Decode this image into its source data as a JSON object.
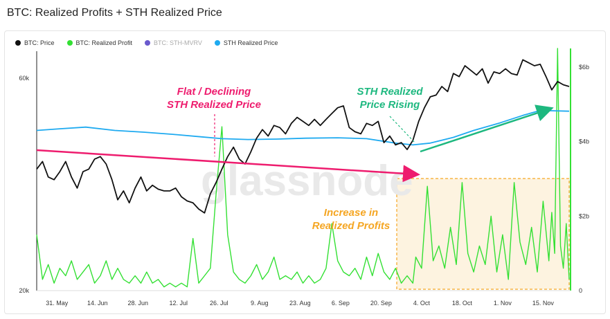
{
  "title": "BTC: Realized Profits + STH Realized Price",
  "legend": [
    {
      "label": "BTC: Price",
      "color": "#111111",
      "dim": false
    },
    {
      "label": "BTC: Realized Profit",
      "color": "#33e033",
      "dim": false
    },
    {
      "label": "BTC: STH-MVRV",
      "color": "#6a5acd",
      "dim": true
    },
    {
      "label": "STH Realized Price",
      "color": "#1eaaf0",
      "dim": false
    }
  ],
  "watermark": "glassnode",
  "annotations": {
    "flat_line1": "Flat / Declining",
    "flat_line2": "STH Realized Price",
    "rising_line1": "STH Realized",
    "rising_line2": "Price Rising",
    "profits_line1": "Increase in",
    "profits_line2": "Realized Profits"
  },
  "colors": {
    "price": "#111111",
    "profit": "#33e033",
    "sth": "#1eaaf0",
    "pink": "#ee1c6e",
    "teal": "#1db87f",
    "orange": "#f5a623",
    "box_fill": "#fdf3e0"
  },
  "chart_data": {
    "type": "line",
    "title": "BTC: Realized Profits + STH Realized Price",
    "x_start": "2021-05-24",
    "x_end": "2021-11-24",
    "x_ticks": [
      "31. May",
      "14. Jun",
      "28. Jun",
      "12. Jul",
      "26. Jul",
      "9. Aug",
      "23. Aug",
      "6. Sep",
      "20. Sep",
      "4. Oct",
      "18. Oct",
      "1. Nov",
      "15. Nov"
    ],
    "y_left_ticks": [
      "20k",
      "60k"
    ],
    "y_left_scale": "log",
    "y_left_range": [
      20000,
      70000
    ],
    "y_right_ticks": [
      "0",
      "$2b",
      "$4b",
      "$6b"
    ],
    "y_right_range": [
      0,
      6.5
    ],
    "series": [
      {
        "name": "BTC: Price",
        "axis": "left",
        "points": [
          [
            "2021-05-24",
            37500
          ],
          [
            "2021-05-26",
            39000
          ],
          [
            "2021-05-28",
            36000
          ],
          [
            "2021-05-30",
            35500
          ],
          [
            "2021-06-01",
            37000
          ],
          [
            "2021-06-03",
            39000
          ],
          [
            "2021-06-05",
            36000
          ],
          [
            "2021-06-07",
            34000
          ],
          [
            "2021-06-09",
            37000
          ],
          [
            "2021-06-11",
            37500
          ],
          [
            "2021-06-13",
            39500
          ],
          [
            "2021-06-15",
            40000
          ],
          [
            "2021-06-17",
            38500
          ],
          [
            "2021-06-19",
            35500
          ],
          [
            "2021-06-21",
            32000
          ],
          [
            "2021-06-23",
            33500
          ],
          [
            "2021-06-25",
            31500
          ],
          [
            "2021-06-27",
            34000
          ],
          [
            "2021-06-29",
            36000
          ],
          [
            "2021-07-01",
            33500
          ],
          [
            "2021-07-03",
            34500
          ],
          [
            "2021-07-05",
            33800
          ],
          [
            "2021-07-07",
            33500
          ],
          [
            "2021-07-09",
            33500
          ],
          [
            "2021-07-11",
            34000
          ],
          [
            "2021-07-13",
            32500
          ],
          [
            "2021-07-15",
            31800
          ],
          [
            "2021-07-17",
            31500
          ],
          [
            "2021-07-19",
            30500
          ],
          [
            "2021-07-21",
            29900
          ],
          [
            "2021-07-23",
            33000
          ],
          [
            "2021-07-25",
            35000
          ],
          [
            "2021-07-27",
            37500
          ],
          [
            "2021-07-29",
            40000
          ],
          [
            "2021-07-31",
            42000
          ],
          [
            "2021-08-02",
            39500
          ],
          [
            "2021-08-04",
            38500
          ],
          [
            "2021-08-06",
            41000
          ],
          [
            "2021-08-08",
            44000
          ],
          [
            "2021-08-10",
            46000
          ],
          [
            "2021-08-12",
            44500
          ],
          [
            "2021-08-14",
            47000
          ],
          [
            "2021-08-16",
            46500
          ],
          [
            "2021-08-18",
            45000
          ],
          [
            "2021-08-20",
            47500
          ],
          [
            "2021-08-22",
            49000
          ],
          [
            "2021-08-24",
            48000
          ],
          [
            "2021-08-26",
            47000
          ],
          [
            "2021-08-28",
            48500
          ],
          [
            "2021-08-30",
            47000
          ],
          [
            "2021-09-01",
            48500
          ],
          [
            "2021-09-03",
            50000
          ],
          [
            "2021-09-05",
            51500
          ],
          [
            "2021-09-07",
            52000
          ],
          [
            "2021-09-09",
            46500
          ],
          [
            "2021-09-11",
            45500
          ],
          [
            "2021-09-13",
            45000
          ],
          [
            "2021-09-15",
            47500
          ],
          [
            "2021-09-17",
            47000
          ],
          [
            "2021-09-19",
            48000
          ],
          [
            "2021-09-21",
            43000
          ],
          [
            "2021-09-23",
            44500
          ],
          [
            "2021-09-25",
            42500
          ],
          [
            "2021-09-27",
            43000
          ],
          [
            "2021-09-29",
            41500
          ],
          [
            "2021-10-01",
            43500
          ],
          [
            "2021-10-03",
            48000
          ],
          [
            "2021-10-05",
            51500
          ],
          [
            "2021-10-07",
            54500
          ],
          [
            "2021-10-09",
            55000
          ],
          [
            "2021-10-11",
            57500
          ],
          [
            "2021-10-13",
            56000
          ],
          [
            "2021-10-15",
            61500
          ],
          [
            "2021-10-17",
            60500
          ],
          [
            "2021-10-19",
            64000
          ],
          [
            "2021-10-21",
            62500
          ],
          [
            "2021-10-23",
            61000
          ],
          [
            "2021-10-25",
            63000
          ],
          [
            "2021-10-27",
            58500
          ],
          [
            "2021-10-29",
            62000
          ],
          [
            "2021-10-31",
            61500
          ],
          [
            "2021-11-02",
            63000
          ],
          [
            "2021-11-04",
            61500
          ],
          [
            "2021-11-06",
            61000
          ],
          [
            "2021-11-08",
            66000
          ],
          [
            "2021-11-10",
            65000
          ],
          [
            "2021-11-12",
            64000
          ],
          [
            "2021-11-14",
            64500
          ],
          [
            "2021-11-16",
            60500
          ],
          [
            "2021-11-18",
            56500
          ],
          [
            "2021-11-20",
            59000
          ],
          [
            "2021-11-22",
            58000
          ],
          [
            "2021-11-24",
            57500
          ]
        ]
      },
      {
        "name": "STH Realized Price",
        "axis": "left",
        "points": [
          [
            "2021-05-24",
            45800
          ],
          [
            "2021-06-01",
            46200
          ],
          [
            "2021-06-10",
            46600
          ],
          [
            "2021-06-20",
            45800
          ],
          [
            "2021-06-30",
            45400
          ],
          [
            "2021-07-10",
            44900
          ],
          [
            "2021-07-20",
            44300
          ],
          [
            "2021-07-27",
            43900
          ],
          [
            "2021-08-05",
            43700
          ],
          [
            "2021-08-15",
            43800
          ],
          [
            "2021-08-25",
            44000
          ],
          [
            "2021-09-05",
            44100
          ],
          [
            "2021-09-15",
            43900
          ],
          [
            "2021-09-25",
            42900
          ],
          [
            "2021-10-01",
            42500
          ],
          [
            "2021-10-07",
            42900
          ],
          [
            "2021-10-15",
            44200
          ],
          [
            "2021-10-22",
            45800
          ],
          [
            "2021-10-31",
            47600
          ],
          [
            "2021-11-08",
            49500
          ],
          [
            "2021-11-14",
            50800
          ],
          [
            "2021-11-24",
            50600
          ]
        ]
      },
      {
        "name": "BTC: Realized Profit",
        "axis": "right",
        "unit": "USD billions",
        "points": [
          [
            "2021-05-24",
            1.5
          ],
          [
            "2021-05-26",
            0.3
          ],
          [
            "2021-05-28",
            0.7
          ],
          [
            "2021-05-30",
            0.2
          ],
          [
            "2021-06-01",
            0.6
          ],
          [
            "2021-06-03",
            0.4
          ],
          [
            "2021-06-05",
            0.8
          ],
          [
            "2021-06-07",
            0.3
          ],
          [
            "2021-06-09",
            0.5
          ],
          [
            "2021-06-11",
            0.7
          ],
          [
            "2021-06-13",
            0.2
          ],
          [
            "2021-06-15",
            0.4
          ],
          [
            "2021-06-17",
            0.8
          ],
          [
            "2021-06-19",
            0.3
          ],
          [
            "2021-06-21",
            0.6
          ],
          [
            "2021-06-23",
            0.3
          ],
          [
            "2021-06-25",
            0.2
          ],
          [
            "2021-06-27",
            0.4
          ],
          [
            "2021-06-29",
            0.2
          ],
          [
            "2021-07-01",
            0.5
          ],
          [
            "2021-07-03",
            0.2
          ],
          [
            "2021-07-05",
            0.3
          ],
          [
            "2021-07-07",
            0.1
          ],
          [
            "2021-07-09",
            0.2
          ],
          [
            "2021-07-11",
            0.1
          ],
          [
            "2021-07-13",
            0.2
          ],
          [
            "2021-07-15",
            0.1
          ],
          [
            "2021-07-17",
            1.4
          ],
          [
            "2021-07-19",
            0.2
          ],
          [
            "2021-07-21",
            0.4
          ],
          [
            "2021-07-23",
            0.6
          ],
          [
            "2021-07-25",
            2.6
          ],
          [
            "2021-07-27",
            4.4
          ],
          [
            "2021-07-29",
            1.5
          ],
          [
            "2021-07-31",
            0.5
          ],
          [
            "2021-08-02",
            0.3
          ],
          [
            "2021-08-04",
            0.2
          ],
          [
            "2021-08-06",
            0.4
          ],
          [
            "2021-08-08",
            0.7
          ],
          [
            "2021-08-10",
            0.3
          ],
          [
            "2021-08-12",
            0.5
          ],
          [
            "2021-08-14",
            0.9
          ],
          [
            "2021-08-16",
            0.3
          ],
          [
            "2021-08-18",
            0.4
          ],
          [
            "2021-08-20",
            0.3
          ],
          [
            "2021-08-22",
            0.5
          ],
          [
            "2021-08-24",
            0.2
          ],
          [
            "2021-08-26",
            0.4
          ],
          [
            "2021-08-28",
            0.2
          ],
          [
            "2021-08-30",
            0.3
          ],
          [
            "2021-09-01",
            0.6
          ],
          [
            "2021-09-03",
            1.8
          ],
          [
            "2021-09-05",
            0.8
          ],
          [
            "2021-09-07",
            0.5
          ],
          [
            "2021-09-09",
            0.4
          ],
          [
            "2021-09-11",
            0.6
          ],
          [
            "2021-09-13",
            0.3
          ],
          [
            "2021-09-15",
            0.9
          ],
          [
            "2021-09-17",
            0.4
          ],
          [
            "2021-09-19",
            1.0
          ],
          [
            "2021-09-21",
            0.5
          ],
          [
            "2021-09-23",
            0.3
          ],
          [
            "2021-09-25",
            0.6
          ],
          [
            "2021-09-27",
            0.2
          ],
          [
            "2021-09-29",
            0.4
          ],
          [
            "2021-10-01",
            0.2
          ],
          [
            "2021-10-02",
            0.9
          ],
          [
            "2021-10-04",
            0.6
          ],
          [
            "2021-10-06",
            2.8
          ],
          [
            "2021-10-08",
            0.8
          ],
          [
            "2021-10-10",
            1.2
          ],
          [
            "2021-10-12",
            0.6
          ],
          [
            "2021-10-14",
            1.7
          ],
          [
            "2021-10-16",
            0.7
          ],
          [
            "2021-10-18",
            2.9
          ],
          [
            "2021-10-20",
            1.0
          ],
          [
            "2021-10-22",
            0.5
          ],
          [
            "2021-10-24",
            1.2
          ],
          [
            "2021-10-26",
            0.7
          ],
          [
            "2021-10-28",
            2.0
          ],
          [
            "2021-10-30",
            0.5
          ],
          [
            "2021-11-01",
            1.5
          ],
          [
            "2021-11-03",
            0.3
          ],
          [
            "2021-11-05",
            2.9
          ],
          [
            "2021-11-07",
            1.3
          ],
          [
            "2021-11-09",
            0.7
          ],
          [
            "2021-11-11",
            1.7
          ],
          [
            "2021-11-13",
            0.5
          ],
          [
            "2021-11-15",
            2.4
          ],
          [
            "2021-11-17",
            0.8
          ],
          [
            "2021-11-18",
            2.1
          ],
          [
            "2021-11-19",
            1.0
          ],
          [
            "2021-11-20",
            6.5
          ],
          [
            "2021-11-21",
            1.2
          ],
          [
            "2021-11-22",
            0.6
          ],
          [
            "2021-11-23",
            1.8
          ],
          [
            "2021-11-24",
            0.3
          ]
        ]
      }
    ]
  }
}
